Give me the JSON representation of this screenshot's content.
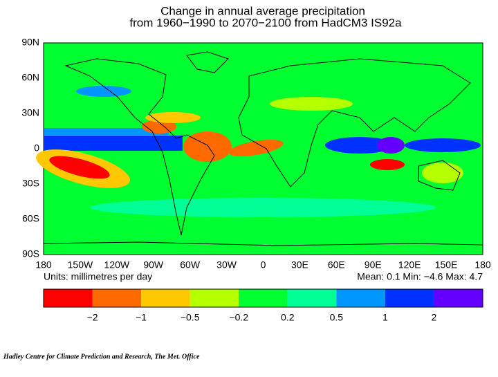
{
  "title": {
    "line1": "Change in annual average precipitation",
    "line2": "from 1960−1990 to 2070−2100 from HadCM3 IS92a"
  },
  "map": {
    "lat_labels": [
      "90N",
      "60N",
      "30N",
      "0",
      "30S",
      "60S",
      "90S"
    ],
    "lon_labels": [
      "180",
      "150W",
      "120W",
      "90W",
      "60W",
      "30W",
      "0",
      "30E",
      "60E",
      "90E",
      "120E",
      "150E",
      "180"
    ]
  },
  "units": "Units: millimetres per day",
  "stats": "Mean:  0.1 Min: −4.6 Max:  4.7",
  "colorbar": {
    "colors": [
      "#ff0000",
      "#ff6a00",
      "#ffc800",
      "#b4ff00",
      "#00ff30",
      "#00ff96",
      "#0096ff",
      "#0032ff",
      "#6400ff"
    ],
    "labels": [
      "−2",
      "−1",
      "−0.5",
      "−0.2",
      "0.2",
      "0.5",
      "1",
      "2"
    ]
  },
  "credit": "Hadley Centre for Climate Prediction and Research, The Met. Office"
}
